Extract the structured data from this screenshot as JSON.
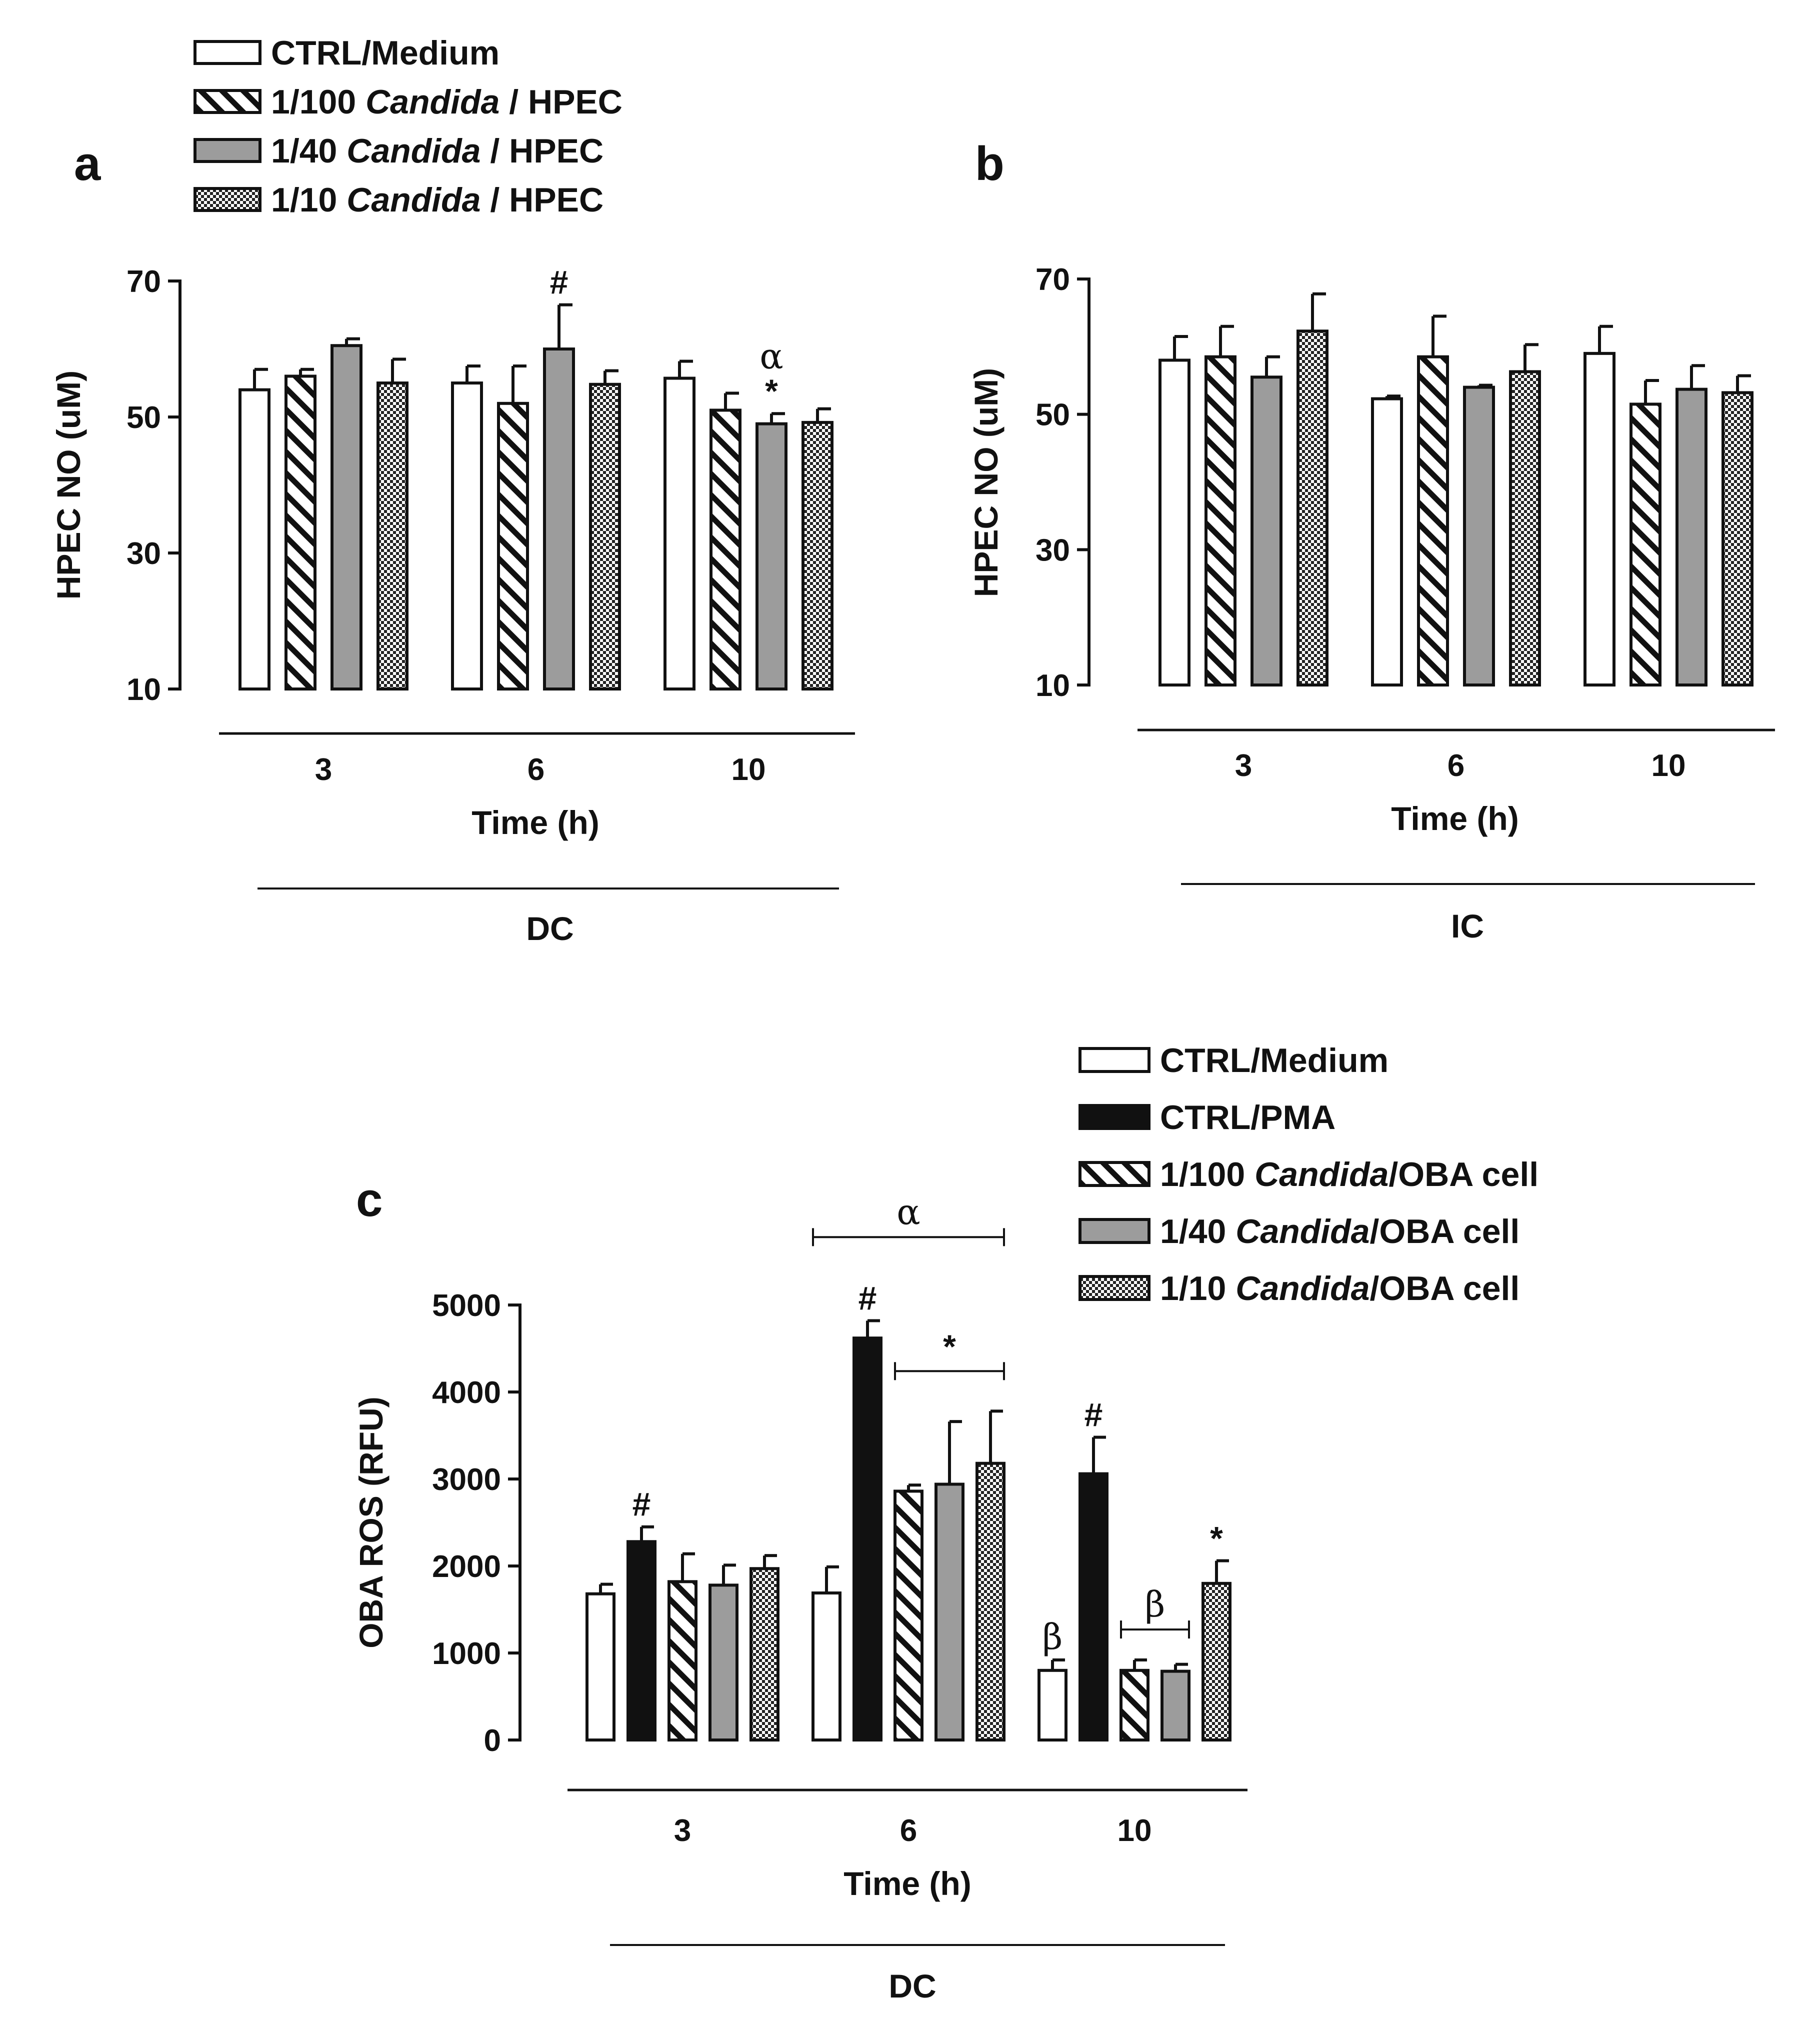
{
  "figure": {
    "patterns": [
      "white",
      "hatch",
      "gray",
      "dots",
      "black"
    ],
    "colors": {
      "ink": "#111111",
      "gray": "#9c9c9c",
      "white": "#ffffff"
    }
  },
  "legend_top": {
    "items": [
      {
        "prefix": "CTRL/Medium",
        "italic": "",
        "suffix": "",
        "pattern": "white"
      },
      {
        "prefix": "1/100 ",
        "italic": "Candida",
        "suffix": " / HPEC",
        "pattern": "hatch"
      },
      {
        "prefix": "1/40 ",
        "italic": "Candida",
        "suffix": " / HPEC",
        "pattern": "gray"
      },
      {
        "prefix": "1/10 ",
        "italic": "Candida",
        "suffix": " / HPEC",
        "pattern": "dots"
      }
    ]
  },
  "legend_bottom": {
    "items": [
      {
        "prefix": "CTRL/Medium",
        "italic": "",
        "suffix": "",
        "pattern": "white"
      },
      {
        "prefix": "CTRL/PMA",
        "italic": "",
        "suffix": "",
        "pattern": "black"
      },
      {
        "prefix": "1/100 ",
        "italic": "Candida",
        "suffix": "/OBA cell",
        "pattern": "hatch"
      },
      {
        "prefix": "1/40 ",
        "italic": "Candida",
        "suffix": "/OBA cell",
        "pattern": "gray"
      },
      {
        "prefix": "1/10 ",
        "italic": "Candida",
        "suffix": "/OBA cell",
        "pattern": "dots"
      }
    ]
  },
  "chart_data": [
    {
      "panel": "a",
      "type": "bar",
      "ylabel": "HPEC NO (uM)",
      "xlabel": "Time (h)",
      "group_label": "DC",
      "ylim": [
        10,
        70
      ],
      "yticks": [
        10,
        30,
        50,
        70
      ],
      "categories": [
        "3",
        "6",
        "10"
      ],
      "series": [
        {
          "name": "CTRL/Medium",
          "pattern": "white",
          "values": [
            54,
            55,
            55.7
          ],
          "errors": [
            3,
            2.5,
            2.5
          ]
        },
        {
          "name": "1/100 Candida / HPEC",
          "pattern": "hatch",
          "values": [
            56,
            52,
            51
          ],
          "errors": [
            1,
            5.5,
            2.5
          ]
        },
        {
          "name": "1/40 Candida / HPEC",
          "pattern": "gray",
          "values": [
            60.5,
            60,
            49
          ],
          "errors": [
            1,
            6.5,
            1.5
          ]
        },
        {
          "name": "1/10 Candida / HPEC",
          "pattern": "dots",
          "values": [
            55,
            54.8,
            49.2
          ],
          "errors": [
            3.5,
            2,
            2
          ]
        }
      ],
      "annotations": [
        {
          "text": "#",
          "category": 1,
          "series": 2
        },
        {
          "text": "α",
          "category": 2,
          "series": 2,
          "level": 2
        },
        {
          "text": "*",
          "category": 2,
          "series": 2,
          "level": 1
        }
      ]
    },
    {
      "panel": "b",
      "type": "bar",
      "ylabel": "HPEC NO (uM)",
      "xlabel": "Time (h)",
      "group_label": "IC",
      "ylim": [
        10,
        70
      ],
      "yticks": [
        10,
        30,
        50,
        70
      ],
      "categories": [
        "3",
        "6",
        "10"
      ],
      "series": [
        {
          "name": "CTRL/Medium",
          "pattern": "white",
          "values": [
            58,
            52.3,
            59
          ],
          "errors": [
            3.5,
            0.4,
            4
          ]
        },
        {
          "name": "1/100 Candida / HPEC",
          "pattern": "hatch",
          "values": [
            58.5,
            58.5,
            51.5
          ],
          "errors": [
            4.5,
            6,
            3.5
          ]
        },
        {
          "name": "1/40 Candida / HPEC",
          "pattern": "gray",
          "values": [
            55.5,
            54,
            53.7
          ],
          "errors": [
            3,
            0.3,
            3.5
          ]
        },
        {
          "name": "1/10 Candida / HPEC",
          "pattern": "dots",
          "values": [
            62.3,
            56.3,
            53.2
          ],
          "errors": [
            5.5,
            4,
            2.5
          ]
        }
      ],
      "annotations": []
    },
    {
      "panel": "c",
      "type": "bar",
      "ylabel": "OBA ROS (RFU)",
      "xlabel": "Time (h)",
      "group_label": "DC",
      "ylim": [
        0,
        5000
      ],
      "yticks": [
        0,
        1000,
        2000,
        3000,
        4000,
        5000
      ],
      "categories": [
        "3",
        "6",
        "10"
      ],
      "series": [
        {
          "name": "CTRL/Medium",
          "pattern": "white",
          "values": [
            1680,
            1690,
            800
          ],
          "errors": [
            110,
            300,
            120
          ]
        },
        {
          "name": "CTRL/PMA",
          "pattern": "black",
          "values": [
            2280,
            4620,
            3060
          ],
          "errors": [
            170,
            200,
            420
          ]
        },
        {
          "name": "1/100 Candida/OBA cell",
          "pattern": "hatch",
          "values": [
            1820,
            2860,
            800
          ],
          "errors": [
            320,
            70,
            120
          ]
        },
        {
          "name": "1/40 Candida/OBA cell",
          "pattern": "gray",
          "values": [
            1780,
            2940,
            790
          ],
          "errors": [
            230,
            720,
            80
          ]
        },
        {
          "name": "1/10 Candida/OBA cell",
          "pattern": "dots",
          "values": [
            1970,
            3180,
            1800
          ],
          "errors": [
            150,
            600,
            260
          ]
        }
      ],
      "annotations": [
        {
          "text": "#",
          "category": 0,
          "series": 1
        },
        {
          "text": "#",
          "category": 1,
          "series": 1
        },
        {
          "text": "#",
          "category": 2,
          "series": 1
        },
        {
          "text": "*",
          "category": 2,
          "series": 4
        },
        {
          "text": "β",
          "category": 2,
          "series": 0
        },
        {
          "text": "α",
          "bracket": {
            "category": 1,
            "from_series": 0,
            "to_series": 4
          },
          "y": 5780
        },
        {
          "text": "*",
          "bracket": {
            "category": 1,
            "from_series": 2,
            "to_series": 4
          },
          "y": 4240
        },
        {
          "text": "β",
          "bracket": {
            "category": 2,
            "from_series": 2,
            "to_series": 3
          },
          "y": 1270
        }
      ]
    }
  ]
}
